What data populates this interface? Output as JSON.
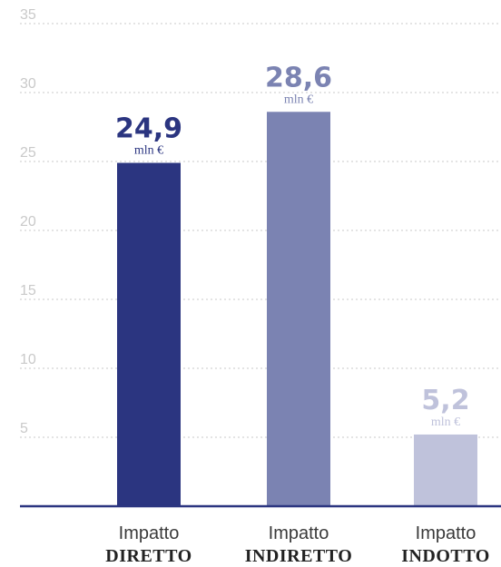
{
  "chart_data": {
    "type": "bar",
    "ylim": [
      0,
      37.5
    ],
    "yticks": [
      5,
      10,
      15,
      20,
      25,
      30,
      35
    ],
    "grid": true,
    "categories": [
      {
        "line1": "Impatto",
        "line2": "DIRETTO"
      },
      {
        "line1": "Impatto",
        "line2": "INDIRETTO"
      },
      {
        "line1": "Impatto",
        "line2": "INDOTTO"
      }
    ],
    "values": [
      24.9,
      28.6,
      5.2
    ],
    "value_labels": [
      "24,9",
      "28,6",
      "5,2"
    ],
    "unit": "mln €",
    "colors": [
      "#2b3580",
      "#7b83b2",
      "#bfc2db"
    ]
  }
}
